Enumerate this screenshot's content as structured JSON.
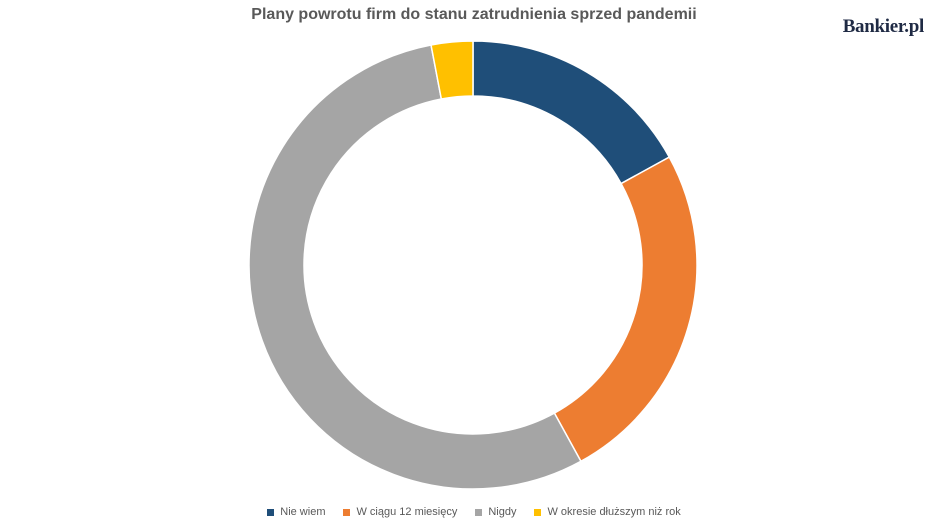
{
  "brand": "Bankier.pl",
  "chart_data": {
    "type": "pie",
    "title": "Plany powrotu firm do stanu zatrudnienia sprzed pandemii",
    "categories": [
      "Nie wiem",
      "W ciągu 12 miesięcy",
      "Nigdy",
      "W okresie dłuższym niż rok"
    ],
    "values": [
      17,
      25,
      55,
      3
    ],
    "colors": [
      "#1f4e79",
      "#ed7d31",
      "#a5a5a5",
      "#ffc000"
    ],
    "donut": true,
    "legend_position": "bottom",
    "start_angle_deg": 0,
    "direction": "clockwise"
  }
}
